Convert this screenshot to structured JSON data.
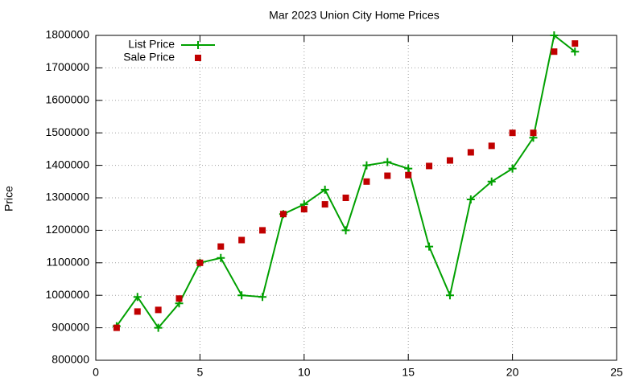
{
  "chart_data": {
    "type": "line",
    "title": "Mar 2023 Union City Home Prices",
    "y_label": "Price",
    "x": [
      1,
      2,
      3,
      4,
      5,
      6,
      7,
      8,
      9,
      10,
      11,
      12,
      13,
      14,
      15,
      16,
      17,
      18,
      19,
      20,
      21,
      22,
      23
    ],
    "series": [
      {
        "name": "List Price",
        "color": "#00a000",
        "style": "linespoints",
        "values": [
          905000,
          995000,
          900000,
          975000,
          1100000,
          1115000,
          1000000,
          995000,
          1250000,
          1280000,
          1325000,
          1200000,
          1400000,
          1410000,
          1390000,
          1150000,
          1000000,
          1295000,
          1350000,
          1390000,
          1485000,
          1800000,
          1750000
        ]
      },
      {
        "name": "Sale Price",
        "color": "#c00000",
        "style": "points",
        "values": [
          900000,
          950000,
          955000,
          990000,
          1100000,
          1150000,
          1170000,
          1200000,
          1250000,
          1265000,
          1280000,
          1300000,
          1350000,
          1368000,
          1370000,
          1398000,
          1415000,
          1440000,
          1460000,
          1500000,
          1500000,
          1750000,
          1775000
        ]
      }
    ],
    "xlim": [
      0,
      25
    ],
    "xticks": [
      0,
      5,
      10,
      15,
      20,
      25
    ],
    "ylim": [
      800000,
      1800000
    ],
    "yticks": [
      800000,
      900000,
      1000000,
      1100000,
      1200000,
      1300000,
      1400000,
      1500000,
      1600000,
      1700000,
      1800000
    ],
    "grid": true,
    "legend": "top-left"
  }
}
